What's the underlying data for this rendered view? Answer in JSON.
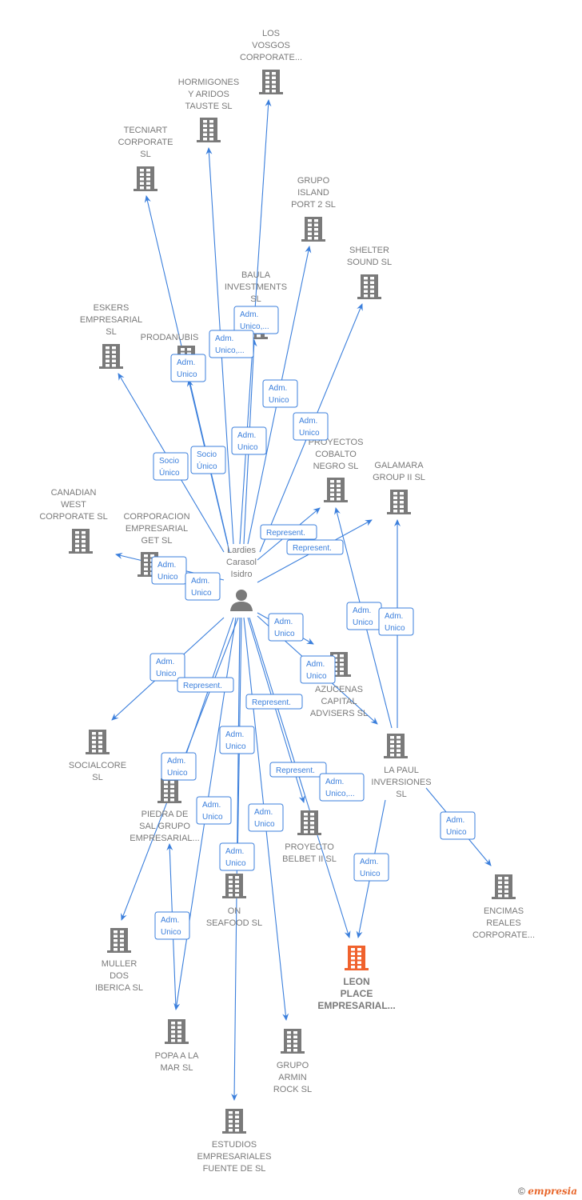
{
  "colors": {
    "edge": "#3b7fdc",
    "node": "#7a7a7a",
    "highlight": "#f0622d"
  },
  "nodes": {
    "los_vosgos": {
      "label": [
        "LOS",
        "VOSGOS",
        "CORPORATE..."
      ]
    },
    "hormigones": {
      "label": [
        "HORMIGONES",
        "Y ARIDOS",
        "TAUSTE  SL"
      ]
    },
    "tecniart": {
      "label": [
        "TECNIART",
        "CORPORATE",
        "SL"
      ]
    },
    "grupo_island": {
      "label": [
        "GRUPO",
        "ISLAND",
        "PORT 2  SL"
      ]
    },
    "shelter": {
      "label": [
        "SHELTER",
        "SOUND  SL"
      ]
    },
    "baula": {
      "label": [
        "BAULA",
        "INVESTMENTS",
        "SL"
      ]
    },
    "eskers": {
      "label": [
        "ESKERS",
        "EMPRESARIAL",
        "SL"
      ]
    },
    "prodanubis": {
      "label": [
        "PRODANUBIS"
      ]
    },
    "cobalto": {
      "label": [
        "PROYECTOS",
        "COBALTO",
        "NEGRO  SL"
      ]
    },
    "galamara": {
      "label": [
        "GALAMARA",
        "GROUP II  SL"
      ]
    },
    "canadian": {
      "label": [
        "CANADIAN",
        "WEST",
        "CORPORATE SL"
      ]
    },
    "corporacion": {
      "label": [
        "CORPORACION",
        "EMPRESARIAL",
        "GET  SL"
      ]
    },
    "person": {
      "label": [
        "Lardies",
        "Carasol",
        "Isidro"
      ]
    },
    "azucenas": {
      "label": [
        "AZUCENAS",
        "CAPITAL",
        "ADVISERS  SL"
      ]
    },
    "socialcore": {
      "label": [
        "SOCIALCORE",
        "SL"
      ]
    },
    "la_paul": {
      "label": [
        "LA PAUL",
        "INVERSIONES",
        "SL"
      ]
    },
    "piedra": {
      "label": [
        "PIEDRA DE",
        "SAL GRUPO",
        "EMPRESARIAL..."
      ]
    },
    "belbet": {
      "label": [
        "PROYECTO",
        "BELBET II  SL"
      ]
    },
    "on_seafood": {
      "label": [
        "ON",
        "SEAFOOD  SL"
      ]
    },
    "encimas": {
      "label": [
        "ENCIMAS",
        "REALES",
        "CORPORATE..."
      ]
    },
    "muller": {
      "label": [
        "MULLER",
        "DOS",
        "IBERICA  SL"
      ]
    },
    "leon": {
      "label": [
        "LEON",
        "PLACE",
        "EMPRESARIAL..."
      ],
      "highlight": true
    },
    "popa": {
      "label": [
        "POPA A LA",
        "MAR  SL"
      ]
    },
    "grupo_armin": {
      "label": [
        "GRUPO",
        "ARMIN",
        "ROCK  SL"
      ]
    },
    "estudios": {
      "label": [
        "ESTUDIOS",
        "EMPRESARIALES",
        "FUENTE DE  SL"
      ]
    }
  },
  "edge_labels": [
    [
      "Adm.",
      "Unico,..."
    ],
    [
      "Adm.",
      "Unico,..."
    ],
    [
      "Adm.",
      "Unico"
    ],
    [
      "Adm.",
      "Unico"
    ],
    [
      "Adm.",
      "Unico"
    ],
    [
      "Adm.",
      "Unico"
    ],
    [
      "Socio",
      "Único"
    ],
    [
      "Socio",
      "Único"
    ],
    [
      "Represent."
    ],
    [
      "Represent."
    ],
    [
      "Adm.",
      "Unico"
    ],
    [
      "Adm.",
      "Unico"
    ],
    [
      "Adm.",
      "Unico"
    ],
    [
      "Adm.",
      "Unico"
    ],
    [
      "Adm.",
      "Unico"
    ],
    [
      "Adm.",
      "Unico"
    ],
    [
      "Adm.",
      "Unico"
    ],
    [
      "Represent."
    ],
    [
      "Represent."
    ],
    [
      "Adm.",
      "Unico"
    ],
    [
      "Adm.",
      "Unico"
    ],
    [
      "Represent."
    ],
    [
      "Adm.",
      "Unico,..."
    ],
    [
      "Adm.",
      "Unico"
    ],
    [
      "Adm.",
      "Unico"
    ],
    [
      "Adm.",
      "Unico"
    ],
    [
      "Adm.",
      "Unico"
    ],
    [
      "Adm.",
      "Unico"
    ],
    [
      "Adm.",
      "Unico"
    ]
  ],
  "footer": {
    "copyright": "©",
    "brand": "empresia"
  }
}
